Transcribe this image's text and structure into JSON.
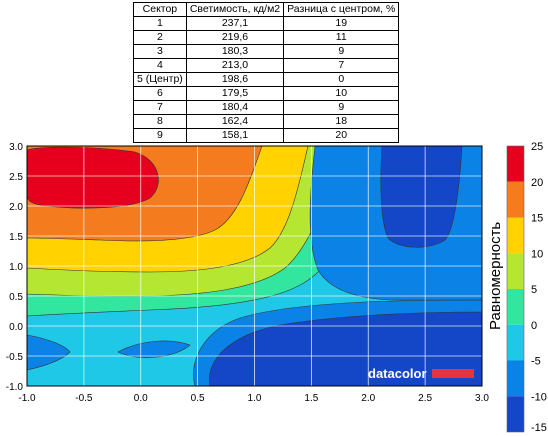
{
  "table": {
    "headers": [
      "Сектор",
      "Светимость, кд/м2",
      "Разница с центром, %"
    ],
    "rows": [
      [
        "1",
        "237,1",
        "19"
      ],
      [
        "2",
        "219,6",
        "11"
      ],
      [
        "3",
        "180,3",
        "9"
      ],
      [
        "4",
        "213,0",
        "7"
      ],
      [
        "5 (Центр)",
        "198,6",
        "0"
      ],
      [
        "6",
        "179,5",
        "10"
      ],
      [
        "7",
        "180,4",
        "9"
      ],
      [
        "8",
        "162,4",
        "18"
      ],
      [
        "9",
        "158,1",
        "20"
      ]
    ]
  },
  "chart_data": {
    "type": "heatmap",
    "title": "",
    "xlabel": "",
    "ylabel": "",
    "xlim": [
      -1.0,
      3.0
    ],
    "ylim": [
      -1.0,
      3.0
    ],
    "x_ticks": [
      "-1.0",
      "-0.5",
      "0.0",
      "0.5",
      "1.0",
      "1.5",
      "2.0",
      "2.5",
      "3.0"
    ],
    "y_ticks": [
      "-1.0",
      "-0.5",
      "0.0",
      "0.5",
      "1.0",
      "1.5",
      "2.0",
      "2.5",
      "3.0"
    ],
    "grid": true,
    "colorbar": {
      "label": "Равномерность",
      "ticks": [
        "25",
        "20",
        "15",
        "10",
        "5",
        "0",
        "-5",
        "-10",
        "-15"
      ],
      "colors": [
        "#e6001e",
        "#f47c1e",
        "#ffd200",
        "#b4e632",
        "#32e6a0",
        "#1ec8e6",
        "#0a82e6",
        "#1446c8"
      ]
    },
    "levels": [
      {
        "range": "15 to 25",
        "color": "#e6001e"
      },
      {
        "range": "10 to 15",
        "color": "#f47c1e"
      },
      {
        "range": "5 to 10",
        "color": "#ffd200"
      },
      {
        "range": "0 to 5",
        "color": "#b4e632"
      },
      {
        "range": "-5 to 0",
        "color": "#32e6a0"
      },
      {
        "range": "-10 to -5",
        "color": "#1ec8e6"
      },
      {
        "range": "-15 to -10",
        "color": "#0a82e6"
      },
      {
        "range": "below -15",
        "color": "#1446c8"
      }
    ]
  },
  "watermark": {
    "brand": "datacolor"
  }
}
